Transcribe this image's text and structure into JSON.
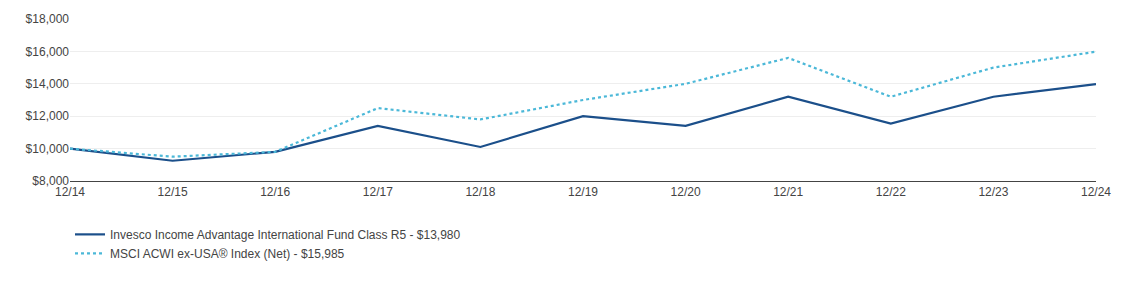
{
  "chart_data": {
    "type": "line",
    "categories": [
      "12/14",
      "12/15",
      "12/16",
      "12/17",
      "12/18",
      "12/19",
      "12/20",
      "12/21",
      "12/22",
      "12/23",
      "12/24"
    ],
    "series": [
      {
        "name": "Invesco Income Advantage International Fund Class R5 - $13,980",
        "color": "#1B4F8A",
        "line_style": "solid",
        "values": [
          10000,
          9250,
          9800,
          11400,
          10100,
          12000,
          11400,
          13200,
          11550,
          13200,
          13980
        ]
      },
      {
        "name": "MSCI ACWI ex-USA® Index (Net) - $15,985",
        "color": "#4BB8D8",
        "line_style": "dotted",
        "values": [
          10000,
          9500,
          9800,
          12500,
          11800,
          13000,
          14000,
          15600,
          13200,
          15000,
          15985
        ]
      }
    ],
    "ylim": [
      8000,
      18000
    ],
    "yticks": [
      {
        "value": 8000,
        "label": "$8,000"
      },
      {
        "value": 10000,
        "label": "$10,000"
      },
      {
        "value": 12000,
        "label": "$12,000"
      },
      {
        "value": 14000,
        "label": "$14,000"
      },
      {
        "value": 16000,
        "label": "$16,000"
      },
      {
        "value": 18000,
        "label": "$18,000"
      }
    ],
    "grid": true,
    "legend": "lower left"
  }
}
